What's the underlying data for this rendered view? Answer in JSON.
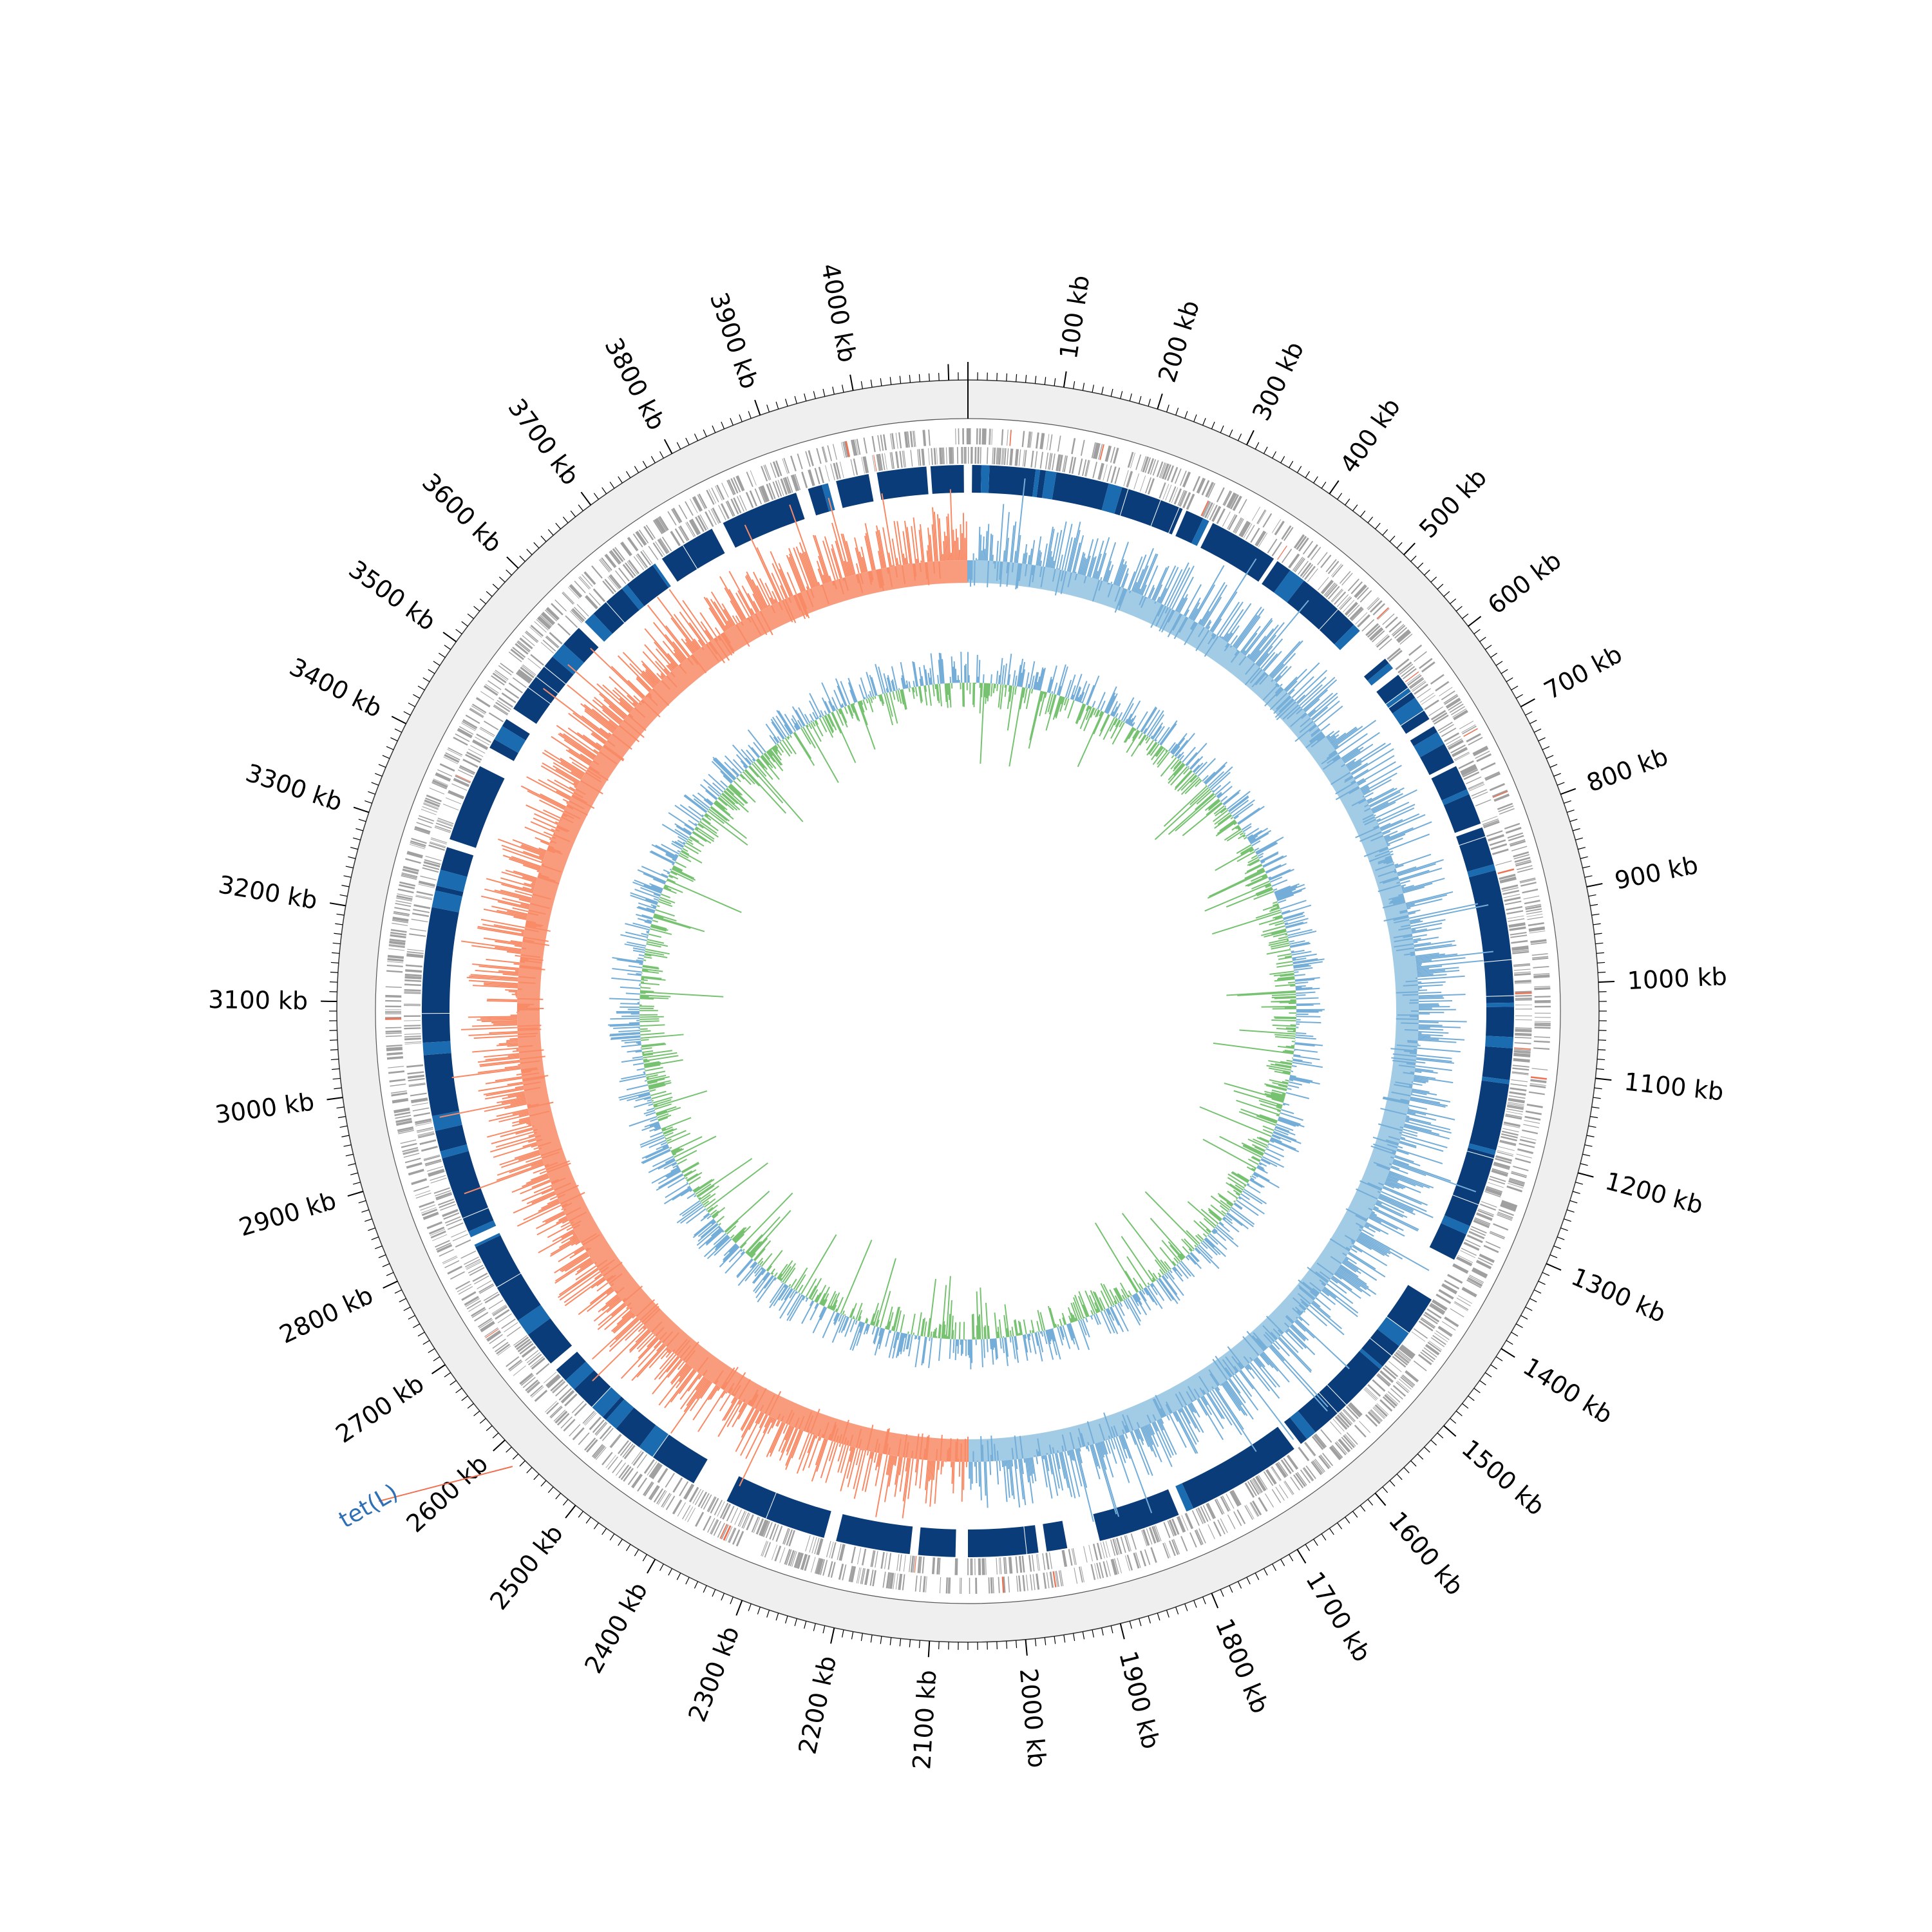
{
  "genome_length_kb": 4120,
  "tick_labels": [
    "100 kb",
    "200 kb",
    "300 kb",
    "400 kb",
    "500 kb",
    "600 kb",
    "700 kb",
    "800 kb",
    "900 kb",
    "1000 kb",
    "1100 kb",
    "1200 kb",
    "1300 kb",
    "1400 kb",
    "1500 kb",
    "1600 kb",
    "1700 kb",
    "1800 kb",
    "1900 kb",
    "2000 kb",
    "2100 kb",
    "2200 kb",
    "2300 kb",
    "2400 kb",
    "2500 kb",
    "2600 kb",
    "2700 kb",
    "2800 kb",
    "2900 kb",
    "3000 kb",
    "3100 kb",
    "3200 kb",
    "3300 kb",
    "3400 kb",
    "3500 kb",
    "3600 kb",
    "3700 kb",
    "3800 kb",
    "3900 kb",
    "4000 kb"
  ],
  "gene_annotations": [
    {
      "label": "tet(L)",
      "position_kb": 2575
    }
  ],
  "colors": {
    "backbone": "#efefef",
    "cds": "#a0a0a0",
    "cds_highlight": "#f07050",
    "homology_main": "#0a3c7a",
    "homology_alt": "#1a6bb0",
    "gc_content_positive": "#92c2e0",
    "gc_content_negative": "#f88a66",
    "gc_skew_positive": "#74aed8",
    "gc_skew_negative": "#76c271",
    "label_blue": "#2f6fb6"
  }
}
